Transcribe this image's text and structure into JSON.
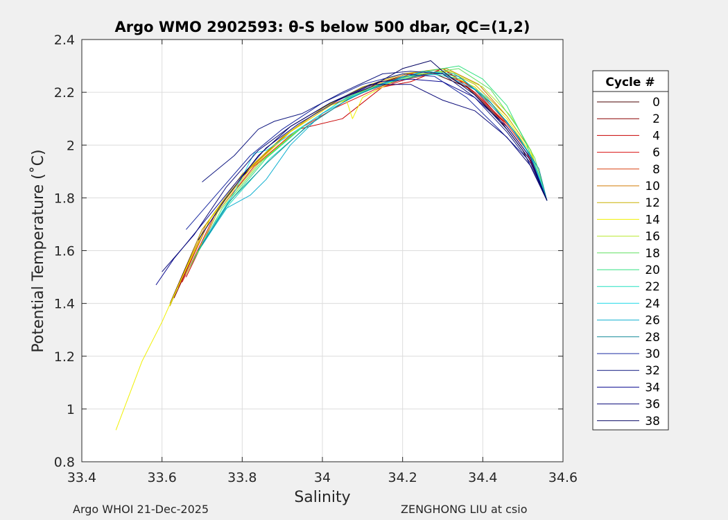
{
  "chart_data": {
    "type": "line",
    "title": "Argo WMO 2902593: θ-S below 500 dbar,  QC=(1,2)",
    "xlabel": "Salinity",
    "ylabel": "Potential Temperature (˚C)",
    "xlim": [
      33.4,
      34.6
    ],
    "ylim": [
      0.8,
      2.4
    ],
    "xticks": [
      "33.4",
      "33.6",
      "33.8",
      "34",
      "34.2",
      "34.4",
      "34.6"
    ],
    "yticks": [
      "0.8",
      "1",
      "1.2",
      "1.4",
      "1.6",
      "1.8",
      "2",
      "2.2",
      "2.4"
    ],
    "grid": true,
    "legend": {
      "title": "Cycle #",
      "placement": "right",
      "entries": [
        "0",
        "2",
        "4",
        "6",
        "8",
        "10",
        "12",
        "14",
        "16",
        "18",
        "20",
        "22",
        "24",
        "26",
        "28",
        "30",
        "32",
        "34",
        "36",
        "38"
      ],
      "colors": [
        "#4a0000",
        "#8a0000",
        "#c80000",
        "#d81010",
        "#d84010",
        "#d07a00",
        "#c8b000",
        "#f0f000",
        "#b8e830",
        "#60e060",
        "#30e080",
        "#20e0c0",
        "#20d8e8",
        "#10b0d0",
        "#108898",
        "#1828a0",
        "#101880",
        "#0a0a90",
        "#080878",
        "#000060"
      ]
    },
    "series": [
      {
        "color": "#4a0000",
        "points": [
          [
            33.62,
            1.4
          ],
          [
            33.7,
            1.68
          ],
          [
            33.8,
            1.88
          ],
          [
            33.9,
            2.03
          ],
          [
            34.0,
            2.14
          ],
          [
            34.1,
            2.22
          ],
          [
            34.2,
            2.26
          ],
          [
            34.28,
            2.27
          ],
          [
            34.36,
            2.22
          ],
          [
            34.44,
            2.1
          ],
          [
            34.5,
            1.98
          ],
          [
            34.56,
            1.79
          ]
        ]
      },
      {
        "color": "#8a0000",
        "points": [
          [
            33.63,
            1.42
          ],
          [
            33.72,
            1.72
          ],
          [
            33.82,
            1.91
          ],
          [
            33.92,
            2.05
          ],
          [
            34.02,
            2.15
          ],
          [
            34.12,
            2.21
          ],
          [
            34.2,
            2.25
          ],
          [
            34.29,
            2.28
          ],
          [
            34.37,
            2.21
          ],
          [
            34.45,
            2.09
          ],
          [
            34.51,
            1.97
          ],
          [
            34.56,
            1.79
          ]
        ]
      },
      {
        "color": "#c80000",
        "points": [
          [
            33.66,
            1.5
          ],
          [
            33.74,
            1.75
          ],
          [
            33.84,
            1.93
          ],
          [
            33.94,
            2.06
          ],
          [
            34.05,
            2.1
          ],
          [
            34.15,
            2.22
          ],
          [
            34.22,
            2.24
          ],
          [
            34.3,
            2.29
          ],
          [
            34.38,
            2.2
          ],
          [
            34.46,
            2.08
          ],
          [
            34.52,
            1.96
          ],
          [
            34.56,
            1.79
          ]
        ]
      },
      {
        "color": "#d81010",
        "points": [
          [
            33.65,
            1.48
          ],
          [
            33.73,
            1.73
          ],
          [
            33.83,
            1.92
          ],
          [
            33.93,
            2.05
          ],
          [
            34.03,
            2.14
          ],
          [
            34.13,
            2.21
          ],
          [
            34.21,
            2.25
          ],
          [
            34.31,
            2.28
          ],
          [
            34.38,
            2.21
          ],
          [
            34.45,
            2.09
          ],
          [
            34.51,
            1.97
          ],
          [
            34.56,
            1.79
          ]
        ]
      },
      {
        "color": "#d84010",
        "points": [
          [
            33.64,
            1.46
          ],
          [
            33.72,
            1.72
          ],
          [
            33.82,
            1.91
          ],
          [
            33.92,
            2.05
          ],
          [
            34.02,
            2.15
          ],
          [
            34.12,
            2.22
          ],
          [
            34.22,
            2.27
          ],
          [
            34.3,
            2.27
          ],
          [
            34.38,
            2.22
          ],
          [
            34.45,
            2.1
          ],
          [
            34.51,
            1.98
          ],
          [
            34.56,
            1.79
          ]
        ]
      },
      {
        "color": "#d07a00",
        "points": [
          [
            33.63,
            1.43
          ],
          [
            33.71,
            1.7
          ],
          [
            33.81,
            1.9
          ],
          [
            33.91,
            2.04
          ],
          [
            34.01,
            2.15
          ],
          [
            34.11,
            2.22
          ],
          [
            34.21,
            2.27
          ],
          [
            34.31,
            2.29
          ],
          [
            34.39,
            2.23
          ],
          [
            34.46,
            2.11
          ],
          [
            34.52,
            1.98
          ],
          [
            34.56,
            1.79
          ]
        ]
      },
      {
        "color": "#c8b000",
        "points": [
          [
            33.62,
            1.39
          ],
          [
            33.7,
            1.68
          ],
          [
            33.8,
            1.89
          ],
          [
            33.9,
            2.03
          ],
          [
            34.0,
            2.14
          ],
          [
            34.1,
            2.22
          ],
          [
            34.2,
            2.27
          ],
          [
            34.3,
            2.29
          ],
          [
            34.38,
            2.23
          ],
          [
            34.46,
            2.11
          ],
          [
            34.52,
            1.98
          ],
          [
            34.56,
            1.79
          ]
        ]
      },
      {
        "color": "#f0f000",
        "points": [
          [
            33.485,
            0.92
          ],
          [
            33.55,
            1.18
          ],
          [
            33.6,
            1.33
          ],
          [
            33.65,
            1.5
          ],
          [
            33.72,
            1.72
          ],
          [
            33.82,
            1.91
          ],
          [
            33.92,
            2.05
          ],
          [
            34.02,
            2.15
          ],
          [
            34.06,
            2.17
          ],
          [
            34.075,
            2.1
          ],
          [
            34.1,
            2.18
          ],
          [
            34.2,
            2.26
          ],
          [
            34.3,
            2.28
          ],
          [
            34.38,
            2.22
          ],
          [
            34.46,
            2.1
          ],
          [
            34.52,
            1.97
          ],
          [
            34.56,
            1.79
          ]
        ]
      },
      {
        "color": "#b8e830",
        "points": [
          [
            33.66,
            1.51
          ],
          [
            33.74,
            1.75
          ],
          [
            33.84,
            1.93
          ],
          [
            33.94,
            2.06
          ],
          [
            34.04,
            2.16
          ],
          [
            34.14,
            2.23
          ],
          [
            34.24,
            2.27
          ],
          [
            34.32,
            2.28
          ],
          [
            34.4,
            2.22
          ],
          [
            34.47,
            2.11
          ],
          [
            34.52,
            1.98
          ],
          [
            34.56,
            1.79
          ]
        ]
      },
      {
        "color": "#60e060",
        "points": [
          [
            33.67,
            1.54
          ],
          [
            33.75,
            1.76
          ],
          [
            33.85,
            1.94
          ],
          [
            33.95,
            2.07
          ],
          [
            34.05,
            2.17
          ],
          [
            34.15,
            2.23
          ],
          [
            34.25,
            2.27
          ],
          [
            34.34,
            2.29
          ],
          [
            34.42,
            2.21
          ],
          [
            34.49,
            2.06
          ],
          [
            34.53,
            1.95
          ],
          [
            34.56,
            1.79
          ]
        ]
      },
      {
        "color": "#30e080",
        "points": [
          [
            33.68,
            1.57
          ],
          [
            33.76,
            1.77
          ],
          [
            33.86,
            1.95
          ],
          [
            33.96,
            2.08
          ],
          [
            34.06,
            2.18
          ],
          [
            34.16,
            2.24
          ],
          [
            34.26,
            2.28
          ],
          [
            34.34,
            2.3
          ],
          [
            34.4,
            2.25
          ],
          [
            34.46,
            2.15
          ],
          [
            34.51,
            2.0
          ],
          [
            34.56,
            1.79
          ]
        ]
      },
      {
        "color": "#20e0c0",
        "points": [
          [
            33.69,
            1.6
          ],
          [
            33.77,
            1.78
          ],
          [
            33.87,
            1.95
          ],
          [
            33.97,
            2.08
          ],
          [
            34.07,
            2.18
          ],
          [
            34.17,
            2.24
          ],
          [
            34.27,
            2.27
          ],
          [
            34.35,
            2.25
          ],
          [
            34.42,
            2.16
          ],
          [
            34.48,
            2.05
          ],
          [
            34.53,
            1.93
          ],
          [
            34.56,
            1.79
          ]
        ]
      },
      {
        "color": "#20d8e8",
        "points": [
          [
            33.7,
            1.63
          ],
          [
            33.78,
            1.82
          ],
          [
            33.83,
            1.97
          ],
          [
            33.86,
            1.98
          ],
          [
            33.95,
            2.07
          ],
          [
            34.05,
            2.17
          ],
          [
            34.15,
            2.23
          ],
          [
            34.25,
            2.28
          ],
          [
            34.33,
            2.27
          ],
          [
            34.41,
            2.18
          ],
          [
            34.48,
            2.05
          ],
          [
            34.53,
            1.93
          ],
          [
            34.56,
            1.79
          ]
        ]
      },
      {
        "color": "#10b0d0",
        "points": [
          [
            33.7,
            1.62
          ],
          [
            33.76,
            1.76
          ],
          [
            33.82,
            1.81
          ],
          [
            33.86,
            1.87
          ],
          [
            33.92,
            2.0
          ],
          [
            34.0,
            2.12
          ],
          [
            34.1,
            2.2
          ],
          [
            34.2,
            2.26
          ],
          [
            34.3,
            2.27
          ],
          [
            34.38,
            2.21
          ],
          [
            34.46,
            2.09
          ],
          [
            34.52,
            1.96
          ],
          [
            34.56,
            1.79
          ]
        ]
      },
      {
        "color": "#108898",
        "points": [
          [
            33.69,
            1.6
          ],
          [
            33.77,
            1.79
          ],
          [
            33.86,
            1.93
          ],
          [
            33.96,
            2.07
          ],
          [
            34.06,
            2.17
          ],
          [
            34.16,
            2.24
          ],
          [
            34.26,
            2.28
          ],
          [
            34.34,
            2.26
          ],
          [
            34.42,
            2.16
          ],
          [
            34.49,
            2.03
          ],
          [
            34.54,
            1.91
          ],
          [
            34.56,
            1.79
          ]
        ]
      },
      {
        "color": "#1828a0",
        "points": [
          [
            33.66,
            1.68
          ],
          [
            33.74,
            1.82
          ],
          [
            33.82,
            1.96
          ],
          [
            33.9,
            2.06
          ],
          [
            34.0,
            2.16
          ],
          [
            34.1,
            2.23
          ],
          [
            34.2,
            2.27
          ],
          [
            34.28,
            2.26
          ],
          [
            34.36,
            2.18
          ],
          [
            34.44,
            2.06
          ],
          [
            34.51,
            1.95
          ],
          [
            34.56,
            1.79
          ]
        ]
      },
      {
        "color": "#101880",
        "points": [
          [
            33.7,
            1.86
          ],
          [
            33.78,
            1.96
          ],
          [
            33.84,
            2.06
          ],
          [
            33.88,
            2.09
          ],
          [
            33.95,
            2.12
          ],
          [
            34.05,
            2.2
          ],
          [
            34.15,
            2.27
          ],
          [
            34.22,
            2.28
          ],
          [
            34.3,
            2.27
          ],
          [
            34.38,
            2.18
          ],
          [
            34.46,
            2.05
          ],
          [
            34.52,
            1.93
          ],
          [
            34.56,
            1.79
          ]
        ]
      },
      {
        "color": "#0a0a90",
        "points": [
          [
            33.585,
            1.47
          ],
          [
            33.63,
            1.57
          ],
          [
            33.7,
            1.7
          ],
          [
            33.78,
            1.85
          ],
          [
            33.86,
            1.99
          ],
          [
            33.94,
            2.08
          ],
          [
            34.04,
            2.17
          ],
          [
            34.14,
            2.24
          ],
          [
            34.22,
            2.25
          ],
          [
            34.3,
            2.24
          ],
          [
            34.38,
            2.18
          ],
          [
            34.46,
            2.07
          ],
          [
            34.52,
            1.95
          ],
          [
            34.56,
            1.79
          ]
        ]
      },
      {
        "color": "#080878",
        "points": [
          [
            33.6,
            1.52
          ],
          [
            33.68,
            1.66
          ],
          [
            33.76,
            1.84
          ],
          [
            33.84,
            1.98
          ],
          [
            33.92,
            2.07
          ],
          [
            34.02,
            2.16
          ],
          [
            34.12,
            2.23
          ],
          [
            34.22,
            2.23
          ],
          [
            34.3,
            2.17
          ],
          [
            34.38,
            2.13
          ],
          [
            34.46,
            2.03
          ],
          [
            34.52,
            1.92
          ],
          [
            34.56,
            1.79
          ]
        ]
      },
      {
        "color": "#000060",
        "points": [
          [
            33.69,
            1.64
          ],
          [
            33.76,
            1.8
          ],
          [
            33.84,
            1.96
          ],
          [
            33.92,
            2.07
          ],
          [
            34.02,
            2.16
          ],
          [
            34.12,
            2.22
          ],
          [
            34.2,
            2.29
          ],
          [
            34.27,
            2.32
          ],
          [
            34.3,
            2.28
          ],
          [
            34.38,
            2.19
          ],
          [
            34.46,
            2.06
          ],
          [
            34.52,
            1.94
          ],
          [
            34.56,
            1.79
          ]
        ]
      }
    ]
  },
  "footer": {
    "left": "Argo WHOI 21-Dec-2025",
    "right": "ZENGHONG LIU at csio"
  }
}
